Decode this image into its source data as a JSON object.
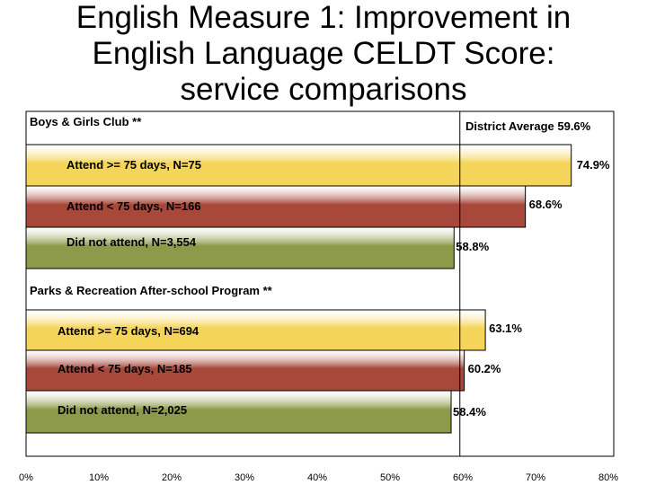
{
  "title": {
    "line1": "English Measure 1: Improvement in",
    "line2": "English Language CELDT Score:",
    "line3": "service comparisons"
  },
  "colors": {
    "attend_75_plus": "#f5d45a",
    "attend_under_75": "#a8483a",
    "did_not_attend": "#8c9a4a",
    "border": "#000000",
    "reference_line": "#000000"
  },
  "chart_data": {
    "type": "bar",
    "orientation": "horizontal",
    "xlim": [
      0,
      80
    ],
    "x_ticks": [
      "0%",
      "10%",
      "20%",
      "30%",
      "40%",
      "50%",
      "60%",
      "70%",
      "80%"
    ],
    "reference_line": {
      "label": "District Average 59.6%",
      "value": 59.6
    },
    "groups": [
      {
        "name": "Boys & Girls Club **",
        "bars": [
          {
            "label": "Attend >= 75 days, N=75",
            "value": 74.9,
            "value_label": "74.9%",
            "category": "attend_75_plus"
          },
          {
            "label": "Attend < 75 days, N=166",
            "value": 68.6,
            "value_label": "68.6%",
            "category": "attend_under_75"
          },
          {
            "label": "Did not attend, N=3,554",
            "value": 58.8,
            "value_label": "58.8%",
            "category": "did_not_attend"
          }
        ]
      },
      {
        "name": "Parks & Recreation After-school Program **",
        "bars": [
          {
            "label": "Attend >= 75 days, N=694",
            "value": 63.1,
            "value_label": "63.1%",
            "category": "attend_75_plus"
          },
          {
            "label": "Attend < 75 days, N=185",
            "value": 60.2,
            "value_label": "60.2%",
            "category": "attend_under_75"
          },
          {
            "label": "Did not attend, N=2,025",
            "value": 58.4,
            "value_label": "58.4%",
            "category": "did_not_attend"
          }
        ]
      }
    ]
  }
}
